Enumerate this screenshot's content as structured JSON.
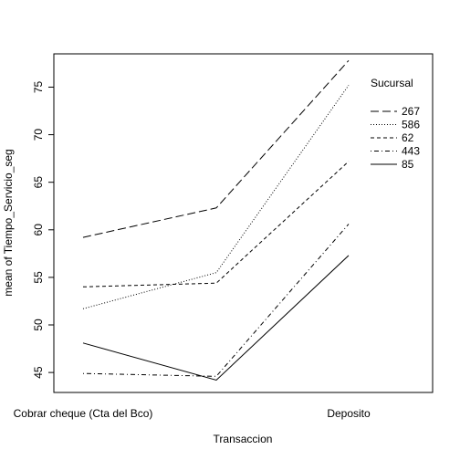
{
  "chart_data": {
    "type": "line",
    "chart_kind": "interaction plot",
    "title": "",
    "xlabel": "Transaccion",
    "ylabel": "mean of Tiempo_Servicio_seg",
    "x_tick_labels": [
      "Cobrar cheque (Cta del Bco)",
      "Deposito"
    ],
    "x_levels": 3,
    "ylim": [
      42.9,
      78.5
    ],
    "y_ticks": [
      45,
      50,
      55,
      60,
      65,
      70,
      75
    ],
    "grid": false,
    "legend": {
      "title": "Sucursal",
      "placement": "top-right",
      "order": [
        "267",
        "586",
        "62",
        "443",
        "85"
      ]
    },
    "series": [
      {
        "name": "267",
        "line_style": "longdash",
        "values": [
          59.2,
          62.3,
          77.8
        ]
      },
      {
        "name": "586",
        "line_style": "dotted",
        "values": [
          51.7,
          55.5,
          75.2
        ]
      },
      {
        "name": "62",
        "line_style": "dashed",
        "values": [
          54.0,
          54.4,
          67.2
        ]
      },
      {
        "name": "443",
        "line_style": "dotdash",
        "values": [
          44.9,
          44.6,
          60.6
        ]
      },
      {
        "name": "85",
        "line_style": "solid",
        "values": [
          48.1,
          44.2,
          57.3
        ]
      }
    ],
    "colors": {
      "line": "#000000",
      "background": "#ffffff"
    }
  }
}
